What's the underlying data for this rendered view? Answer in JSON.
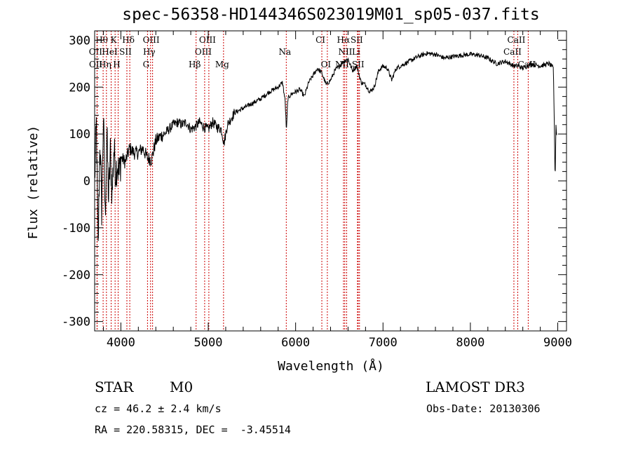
{
  "chart_data": {
    "type": "line",
    "title": "spec-56358-HD144346S023019M01_sp05-037.fits",
    "xlabel": "Wavelength (Å)",
    "ylabel": "Flux (relative)",
    "xlim": [
      3700,
      9100
    ],
    "ylim": [
      -320,
      320
    ],
    "x_ticks": [
      4000,
      5000,
      6000,
      7000,
      8000,
      9000
    ],
    "y_ticks": [
      -300,
      -200,
      -100,
      0,
      100,
      200,
      300
    ],
    "series": [
      {
        "points": [
          [
            3700,
            0
          ],
          [
            3720,
            120
          ],
          [
            3740,
            -150
          ],
          [
            3760,
            90
          ],
          [
            3780,
            -60
          ],
          [
            3800,
            140
          ],
          [
            3820,
            -80
          ],
          [
            3840,
            100
          ],
          [
            3860,
            -40
          ],
          [
            3880,
            60
          ],
          [
            3900,
            -30
          ],
          [
            3920,
            70
          ],
          [
            3940,
            20
          ],
          [
            3960,
            40
          ],
          [
            3980,
            10
          ],
          [
            4000,
            50
          ],
          [
            4050,
            40
          ],
          [
            4100,
            70
          ],
          [
            4150,
            60
          ],
          [
            4200,
            60
          ],
          [
            4250,
            70
          ],
          [
            4300,
            50
          ],
          [
            4350,
            45
          ],
          [
            4400,
            85
          ],
          [
            4450,
            95
          ],
          [
            4500,
            100
          ],
          [
            4550,
            110
          ],
          [
            4600,
            120
          ],
          [
            4650,
            125
          ],
          [
            4700,
            120
          ],
          [
            4750,
            125
          ],
          [
            4800,
            110
          ],
          [
            4850,
            115
          ],
          [
            4900,
            125
          ],
          [
            4950,
            115
          ],
          [
            5000,
            110
          ],
          [
            5050,
            125
          ],
          [
            5100,
            115
          ],
          [
            5150,
            110
          ],
          [
            5180,
            80
          ],
          [
            5220,
            120
          ],
          [
            5300,
            145
          ],
          [
            5400,
            155
          ],
          [
            5500,
            165
          ],
          [
            5600,
            175
          ],
          [
            5700,
            190
          ],
          [
            5800,
            200
          ],
          [
            5850,
            210
          ],
          [
            5880,
            170
          ],
          [
            5895,
            105
          ],
          [
            5910,
            175
          ],
          [
            5950,
            185
          ],
          [
            6000,
            190
          ],
          [
            6050,
            195
          ],
          [
            6100,
            180
          ],
          [
            6150,
            210
          ],
          [
            6200,
            225
          ],
          [
            6250,
            240
          ],
          [
            6300,
            230
          ],
          [
            6350,
            205
          ],
          [
            6400,
            215
          ],
          [
            6450,
            235
          ],
          [
            6500,
            245
          ],
          [
            6550,
            255
          ],
          [
            6600,
            260
          ],
          [
            6650,
            235
          ],
          [
            6700,
            245
          ],
          [
            6750,
            210
          ],
          [
            6800,
            205
          ],
          [
            6850,
            190
          ],
          [
            6900,
            200
          ],
          [
            6950,
            235
          ],
          [
            7000,
            245
          ],
          [
            7050,
            240
          ],
          [
            7100,
            215
          ],
          [
            7150,
            240
          ],
          [
            7200,
            245
          ],
          [
            7300,
            255
          ],
          [
            7400,
            265
          ],
          [
            7500,
            272
          ],
          [
            7600,
            270
          ],
          [
            7700,
            262
          ],
          [
            7800,
            265
          ],
          [
            7900,
            268
          ],
          [
            8000,
            270
          ],
          [
            8100,
            268
          ],
          [
            8200,
            262
          ],
          [
            8300,
            250
          ],
          [
            8400,
            255
          ],
          [
            8500,
            245
          ],
          [
            8550,
            245
          ],
          [
            8600,
            240
          ],
          [
            8650,
            245
          ],
          [
            8700,
            250
          ],
          [
            8800,
            245
          ],
          [
            8900,
            250
          ],
          [
            8950,
            240
          ],
          [
            8970,
            0
          ],
          [
            8980,
            120
          ],
          [
            8990,
            90
          ]
        ]
      }
    ],
    "lines": [
      {
        "label": "Hθ",
        "wave": 3797,
        "row": 0
      },
      {
        "label": "K",
        "wave": 3934,
        "row": 0
      },
      {
        "label": "Hδ",
        "wave": 4102,
        "row": 0
      },
      {
        "label": "OIII",
        "wave": 4363,
        "row": 0
      },
      {
        "label": "OIII",
        "wave": 5007,
        "row": 0
      },
      {
        "label": "CI",
        "wave": 6300,
        "row": 0
      },
      {
        "label": "Hα",
        "wave": 6563,
        "row": 0
      },
      {
        "label": "SII",
        "wave": 6716,
        "row": 0
      },
      {
        "label": "CaII",
        "wave": 8542,
        "row": 0
      },
      {
        "label": "OII",
        "wave": 3727,
        "row": 1
      },
      {
        "label": "HeI",
        "wave": 3889,
        "row": 1
      },
      {
        "label": "SII",
        "wave": 4069,
        "row": 1
      },
      {
        "label": "Hγ",
        "wave": 4340,
        "row": 1
      },
      {
        "label": "OIII",
        "wave": 4959,
        "row": 1
      },
      {
        "label": "Na",
        "wave": 5893,
        "row": 1
      },
      {
        "label": "NII",
        "wave": 6584,
        "row": 1
      },
      {
        "label": "Li",
        "wave": 6708,
        "row": 1
      },
      {
        "label": "CaII",
        "wave": 8498,
        "row": 1
      },
      {
        "label": "OII",
        "wave": 3729,
        "row": 2
      },
      {
        "label": "Hη",
        "wave": 3835,
        "row": 2
      },
      {
        "label": "H",
        "wave": 3969,
        "row": 2
      },
      {
        "label": "G",
        "wave": 4305,
        "row": 2
      },
      {
        "label": "Hβ",
        "wave": 4861,
        "row": 2
      },
      {
        "label": "Mg",
        "wave": 5175,
        "row": 2
      },
      {
        "label": "OI",
        "wave": 6363,
        "row": 2
      },
      {
        "label": "NII",
        "wave": 6548,
        "row": 2
      },
      {
        "label": "SII",
        "wave": 6731,
        "row": 2
      },
      {
        "label": "CaII",
        "wave": 8662,
        "row": 2
      }
    ]
  },
  "info": {
    "object_class": "STAR",
    "subclass": "M0",
    "survey": "LAMOST DR3",
    "cz": "cz = 46.2 ± 2.4 km/s",
    "obs_date": "Obs-Date: 20130306",
    "coords": "RA = 220.58315, DEC =  -3.45514"
  }
}
